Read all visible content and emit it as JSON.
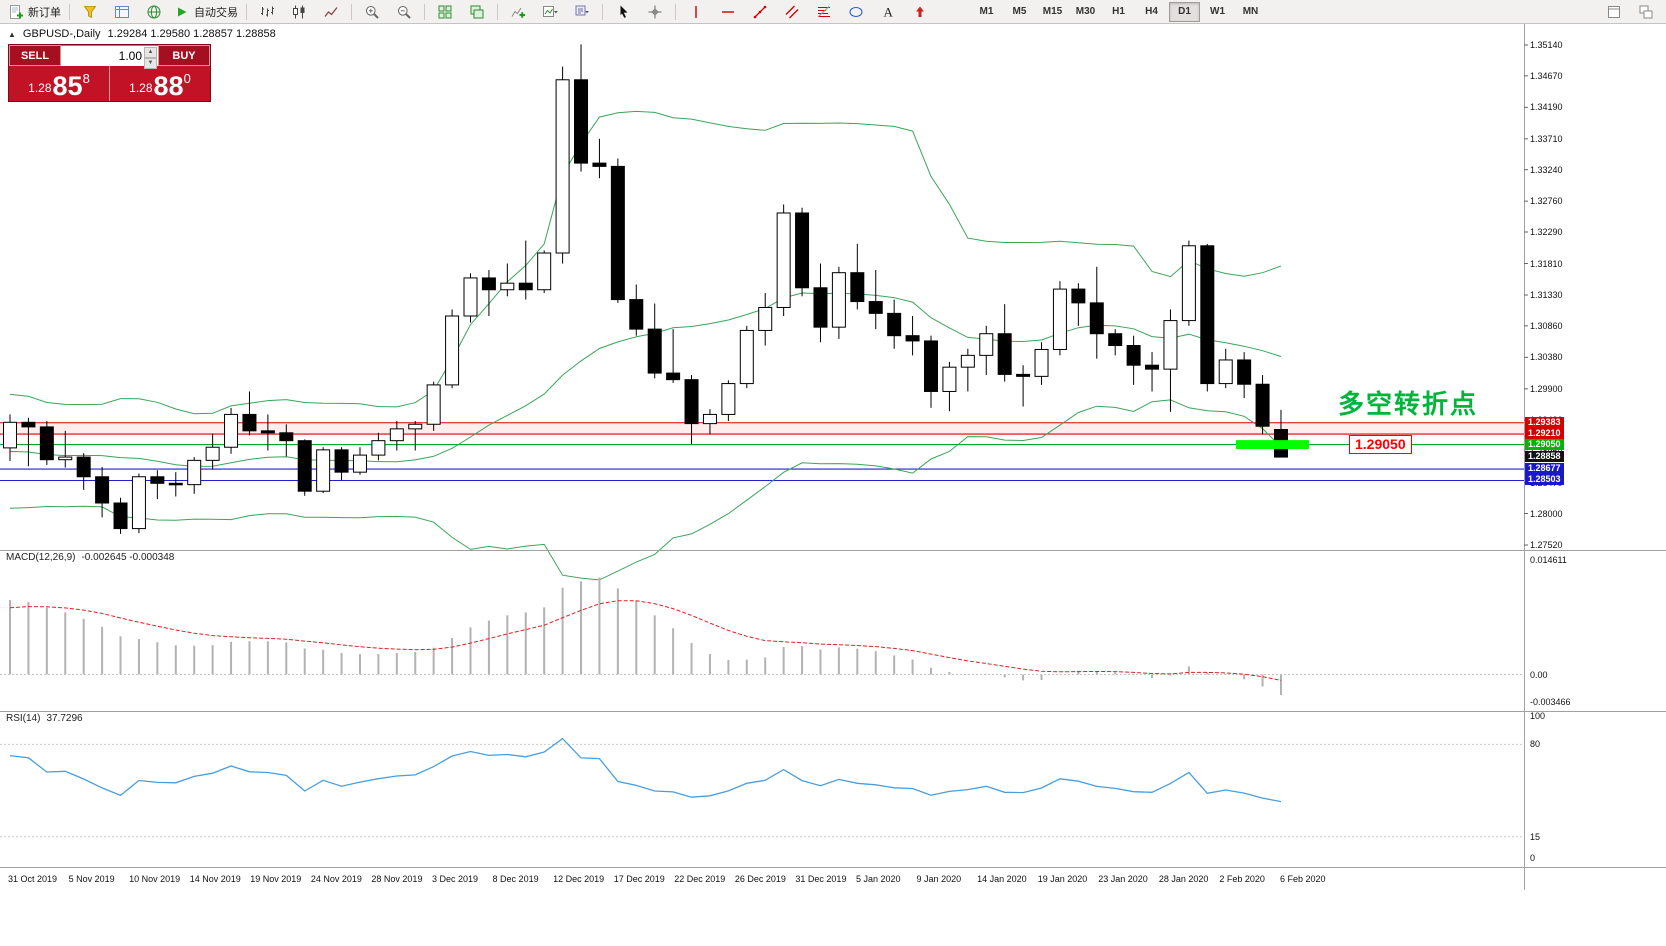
{
  "toolbar": {
    "new_order_label": "新订单",
    "autotrading_label": "自动交易",
    "timeframes": [
      "M1",
      "M5",
      "M15",
      "M30",
      "H1",
      "H4",
      "D1",
      "W1",
      "MN"
    ],
    "active_timeframe": "D1"
  },
  "chart_info": {
    "symbol": "GBPUSD-,Daily",
    "ohlc": "1.29284 1.29580 1.28857 1.28858"
  },
  "one_click": {
    "sell_label": "SELL",
    "buy_label": "BUY",
    "volume": "1.00",
    "panel_color": "#c11226",
    "sell_price": {
      "prefix": "1.28",
      "big": "85",
      "sup": "8"
    },
    "buy_price": {
      "prefix": "1.28",
      "big": "88",
      "sup": "0"
    }
  },
  "price_axis": {
    "labels": [
      "1.35140",
      "1.34670",
      "1.34190",
      "1.33710",
      "1.33240",
      "1.32760",
      "1.32290",
      "1.31810",
      "1.31330",
      "1.30860",
      "1.30380",
      "1.29900",
      "1.29420",
      "1.28950",
      "1.28470",
      "1.28000",
      "1.27520"
    ],
    "tags": [
      {
        "value": "1.29383",
        "color": "#d40000"
      },
      {
        "value": "1.29210",
        "color": "#d40000"
      },
      {
        "value": "1.29050",
        "color": "#00b400"
      },
      {
        "value": "1.28858",
        "color": "#111111"
      },
      {
        "value": "1.28677",
        "color": "#1818cc"
      },
      {
        "value": "1.28503",
        "color": "#1818cc"
      }
    ]
  },
  "macd_panel": {
    "label": "MACD(12,26,9)",
    "values": "-0.002645 -0.000348",
    "axis": [
      "0.014611",
      "0.00",
      "-0.003466"
    ]
  },
  "rsi_panel": {
    "label": "RSI(14)",
    "value": "37.7296",
    "axis": [
      "100",
      "80",
      "15",
      "0"
    ]
  },
  "chart_objects": {
    "horizontal_lines": [
      {
        "price": 1.29383,
        "color": "#e00000"
      },
      {
        "price": 1.2921,
        "color": "#e00000"
      },
      {
        "price": 1.2905,
        "color": "#00a830"
      },
      {
        "price": 1.28677,
        "color": "#2222cc"
      },
      {
        "price": 1.28503,
        "color": "#2222cc"
      }
    ],
    "support_zone": {
      "from": 1.29383,
      "to": 1.2921,
      "fill": "rgba(224,0,0,0.07)"
    },
    "highlight_bar": {
      "price": 1.2905,
      "color": "#00ff00"
    },
    "price_callout": {
      "text": "1.29050",
      "color": "#ff0000"
    },
    "note_text": {
      "text": "多空转折点",
      "color": "#00b43c"
    }
  },
  "chart_data": {
    "type": "candlestick",
    "symbol": "GBPUSD",
    "timeframe": "Daily",
    "ylim": [
      1.274,
      1.352
    ],
    "dates": [
      "31 Oct 2019",
      "5 Nov 2019",
      "10 Nov 2019",
      "14 Nov 2019",
      "19 Nov 2019",
      "24 Nov 2019",
      "28 Nov 2019",
      "3 Dec 2019",
      "8 Dec 2019",
      "12 Dec 2019",
      "17 Dec 2019",
      "22 Dec 2019",
      "26 Dec 2019",
      "31 Dec 2019",
      "5 Jan 2020",
      "9 Jan 2020",
      "14 Jan 2020",
      "19 Jan 2020",
      "23 Jan 2020",
      "28 Jan 2020",
      "2 Feb 2020",
      "6 Feb 2020"
    ],
    "candles": [
      [
        1.29,
        1.2951,
        1.288,
        1.2939
      ],
      [
        1.2939,
        1.2946,
        1.2872,
        1.2932
      ],
      [
        1.2932,
        1.2941,
        1.2874,
        1.2882
      ],
      [
        1.2882,
        1.2926,
        1.287,
        1.2886
      ],
      [
        1.2886,
        1.2892,
        1.2836,
        1.2856
      ],
      [
        1.2856,
        1.2871,
        1.2794,
        1.2816
      ],
      [
        1.2816,
        1.2824,
        1.2769,
        1.2777
      ],
      [
        1.2777,
        1.2861,
        1.277,
        1.2856
      ],
      [
        1.2856,
        1.2866,
        1.2822,
        1.2846
      ],
      [
        1.2846,
        1.2863,
        1.2826,
        1.2844
      ],
      [
        1.2844,
        1.2886,
        1.283,
        1.2881
      ],
      [
        1.2881,
        1.2922,
        1.2867,
        1.2901
      ],
      [
        1.2901,
        1.2961,
        1.2891,
        1.2951
      ],
      [
        1.2951,
        1.2986,
        1.2919,
        1.2926
      ],
      [
        1.2926,
        1.2951,
        1.2896,
        1.2923
      ],
      [
        1.2923,
        1.2936,
        1.2887,
        1.2911
      ],
      [
        1.2911,
        1.2913,
        1.2827,
        1.2834
      ],
      [
        1.2834,
        1.2901,
        1.2831,
        1.2897
      ],
      [
        1.2897,
        1.2901,
        1.2851,
        1.2863
      ],
      [
        1.2863,
        1.2901,
        1.2859,
        1.2889
      ],
      [
        1.2889,
        1.2923,
        1.2881,
        1.2911
      ],
      [
        1.2911,
        1.2941,
        1.2896,
        1.2929
      ],
      [
        1.2929,
        1.2941,
        1.2896,
        1.2936
      ],
      [
        1.2936,
        1.3001,
        1.2926,
        1.2996
      ],
      [
        1.2996,
        1.3111,
        1.2991,
        1.3101
      ],
      [
        1.3101,
        1.3166,
        1.3091,
        1.3159
      ],
      [
        1.3159,
        1.3171,
        1.3101,
        1.3141
      ],
      [
        1.3141,
        1.3181,
        1.3131,
        1.3151
      ],
      [
        1.3151,
        1.3216,
        1.3126,
        1.3141
      ],
      [
        1.3141,
        1.3201,
        1.3136,
        1.3197
      ],
      [
        1.3197,
        1.3481,
        1.3181,
        1.3461
      ],
      [
        1.3461,
        1.3515,
        1.3321,
        1.3334
      ],
      [
        1.3334,
        1.3371,
        1.3311,
        1.3329
      ],
      [
        1.3329,
        1.3341,
        1.3121,
        1.3126
      ],
      [
        1.3126,
        1.3149,
        1.3071,
        1.3081
      ],
      [
        1.3081,
        1.312,
        1.3006,
        1.3014
      ],
      [
        1.3014,
        1.3081,
        1.2999,
        1.3004
      ],
      [
        1.3004,
        1.3011,
        1.2906,
        1.2937
      ],
      [
        1.2937,
        1.2959,
        1.2921,
        1.2951
      ],
      [
        1.2951,
        1.3003,
        1.2941,
        1.2998
      ],
      [
        1.2998,
        1.3086,
        1.2991,
        1.3079
      ],
      [
        1.3079,
        1.3136,
        1.3056,
        1.3114
      ],
      [
        1.3114,
        1.3271,
        1.3101,
        1.3258
      ],
      [
        1.3258,
        1.3266,
        1.3131,
        1.3144
      ],
      [
        1.3144,
        1.3181,
        1.3061,
        1.3084
      ],
      [
        1.3084,
        1.3176,
        1.3066,
        1.3167
      ],
      [
        1.3167,
        1.3211,
        1.3111,
        1.3123
      ],
      [
        1.3123,
        1.3171,
        1.3081,
        1.3105
      ],
      [
        1.3105,
        1.3126,
        1.3051,
        1.3071
      ],
      [
        1.3071,
        1.3101,
        1.3041,
        1.3063
      ],
      [
        1.3063,
        1.3071,
        1.2961,
        1.2986
      ],
      [
        1.2986,
        1.3031,
        1.2956,
        1.3023
      ],
      [
        1.3023,
        1.3051,
        1.2986,
        1.3041
      ],
      [
        1.3041,
        1.3086,
        1.3011,
        1.3074
      ],
      [
        1.3074,
        1.3119,
        1.3001,
        1.3012
      ],
      [
        1.3012,
        1.3026,
        1.2963,
        1.3009
      ],
      [
        1.3009,
        1.3061,
        1.2996,
        1.305
      ],
      [
        1.305,
        1.3154,
        1.3041,
        1.3142
      ],
      [
        1.3142,
        1.3151,
        1.3086,
        1.3121
      ],
      [
        1.3121,
        1.3176,
        1.3036,
        1.3074
      ],
      [
        1.3074,
        1.3081,
        1.3041,
        1.3056
      ],
      [
        1.3056,
        1.3071,
        1.2996,
        1.3026
      ],
      [
        1.3026,
        1.3046,
        1.2986,
        1.302
      ],
      [
        1.302,
        1.3111,
        1.2955,
        1.3094
      ],
      [
        1.3094,
        1.3216,
        1.3086,
        1.3208
      ],
      [
        1.3208,
        1.3211,
        1.2986,
        1.2998
      ],
      [
        1.2998,
        1.3051,
        1.2991,
        1.3034
      ],
      [
        1.3034,
        1.3046,
        1.2976,
        1.2997
      ],
      [
        1.2997,
        1.3011,
        1.2921,
        1.2933
      ],
      [
        1.2928,
        1.2958,
        1.2886,
        1.2886
      ]
    ],
    "indicators": {
      "bollinger": {
        "period": 20,
        "deviation": 2,
        "seed_closes": [
          1.295,
          1.296,
          1.292,
          1.285,
          1.282,
          1.284,
          1.288,
          1.293,
          1.295,
          1.2935,
          1.2895,
          1.2845,
          1.2825,
          1.2855,
          1.2895,
          1.293,
          1.291,
          1.287,
          1.2895
        ]
      },
      "macd": {
        "fast": 12,
        "slow": 26,
        "signal": 9,
        "seed_closes": [
          1.262,
          1.26,
          1.258,
          1.256,
          1.254,
          1.252,
          1.25,
          1.248,
          1.246,
          1.244,
          1.243,
          1.245,
          1.248,
          1.252,
          1.256,
          1.26,
          1.265,
          1.27,
          1.275,
          1.28,
          1.285,
          1.289,
          1.292,
          1.294,
          1.295,
          1.294,
          1.292,
          1.29,
          1.291,
          1.293
        ]
      },
      "rsi": {
        "period": 14
      }
    }
  }
}
